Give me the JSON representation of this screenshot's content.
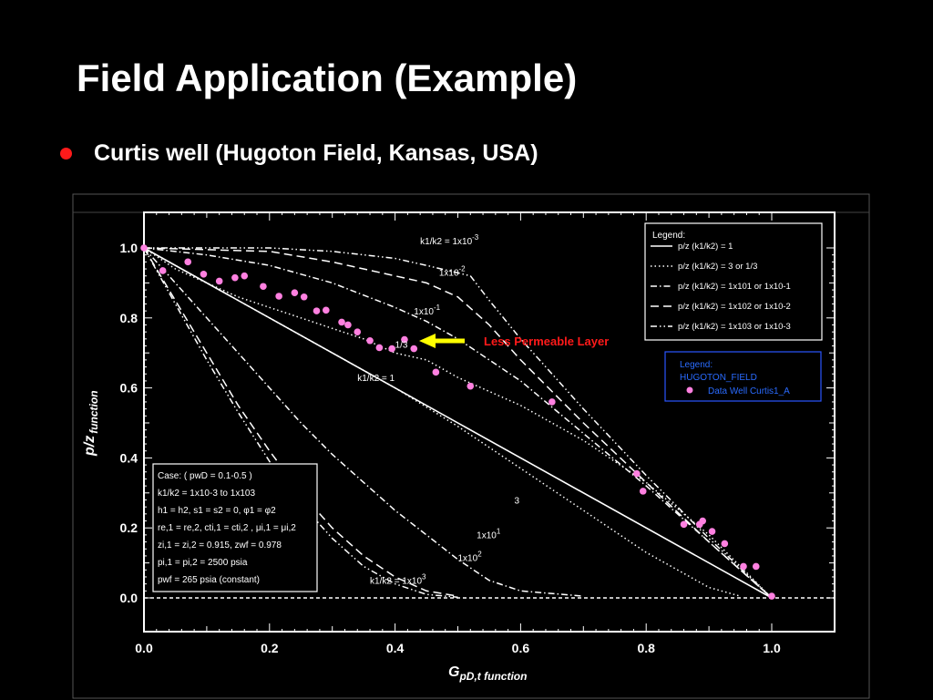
{
  "slide": {
    "title": "Field Application (Example)",
    "bullet": "Curtis well (Hugoton Field, Kansas, USA)",
    "bullet_color": "#ff1a1a"
  },
  "chart_data": {
    "type": "line",
    "xlabel": "G",
    "xlabel_sub": "pD,t function",
    "ylabel": "p/z",
    "ylabel_sub": "function",
    "xlim": [
      0,
      1.0
    ],
    "ylim": [
      0,
      1.0
    ],
    "xticks": [
      "0.0",
      "0.2",
      "0.4",
      "0.6",
      "0.8",
      "1.0"
    ],
    "yticks": [
      "0.0",
      "0.2",
      "0.4",
      "0.6",
      "0.8",
      "1.0"
    ],
    "series": [
      {
        "key": "r1",
        "style": "solid",
        "points": [
          [
            0,
            1
          ],
          [
            1.0,
            0
          ]
        ]
      },
      {
        "key": "r3",
        "style": "dotted",
        "points": [
          [
            0,
            1
          ],
          [
            0.1,
            0.9
          ],
          [
            0.2,
            0.8
          ],
          [
            0.3,
            0.7
          ],
          [
            0.4,
            0.6
          ],
          [
            0.5,
            0.49
          ],
          [
            0.6,
            0.37
          ],
          [
            0.7,
            0.25
          ],
          [
            0.8,
            0.13
          ],
          [
            0.9,
            0.03
          ],
          [
            0.95,
            0.005
          ]
        ]
      },
      {
        "key": "r1_3",
        "style": "dotted",
        "points": [
          [
            0,
            1
          ],
          [
            0.05,
            0.94
          ],
          [
            0.1,
            0.9
          ],
          [
            0.15,
            0.86
          ],
          [
            0.2,
            0.83
          ],
          [
            0.25,
            0.8
          ],
          [
            0.3,
            0.77
          ],
          [
            0.35,
            0.74
          ],
          [
            0.4,
            0.7
          ],
          [
            0.45,
            0.68
          ],
          [
            0.5,
            0.63
          ],
          [
            0.6,
            0.55
          ],
          [
            0.7,
            0.45
          ],
          [
            0.8,
            0.33
          ],
          [
            0.9,
            0.18
          ],
          [
            1.0,
            0
          ]
        ]
      },
      {
        "key": "r10",
        "style": "dashdot",
        "points": [
          [
            0,
            1
          ],
          [
            0.05,
            0.9
          ],
          [
            0.1,
            0.8
          ],
          [
            0.15,
            0.7
          ],
          [
            0.2,
            0.6
          ],
          [
            0.25,
            0.5
          ],
          [
            0.3,
            0.41
          ],
          [
            0.35,
            0.33
          ],
          [
            0.4,
            0.25
          ],
          [
            0.45,
            0.18
          ],
          [
            0.5,
            0.11
          ],
          [
            0.55,
            0.05
          ],
          [
            0.6,
            0.02
          ],
          [
            0.7,
            0.005
          ]
        ]
      },
      {
        "key": "r0_1",
        "style": "dashdot",
        "points": [
          [
            0,
            1
          ],
          [
            0.1,
            0.98
          ],
          [
            0.2,
            0.95
          ],
          [
            0.3,
            0.9
          ],
          [
            0.4,
            0.83
          ],
          [
            0.45,
            0.79
          ],
          [
            0.5,
            0.74
          ],
          [
            0.6,
            0.62
          ],
          [
            0.7,
            0.47
          ],
          [
            0.8,
            0.32
          ],
          [
            0.9,
            0.16
          ],
          [
            1.0,
            0
          ]
        ]
      },
      {
        "key": "r100",
        "style": "dashed",
        "points": [
          [
            0,
            1
          ],
          [
            0.05,
            0.85
          ],
          [
            0.1,
            0.7
          ],
          [
            0.15,
            0.55
          ],
          [
            0.2,
            0.42
          ],
          [
            0.25,
            0.3
          ],
          [
            0.3,
            0.2
          ],
          [
            0.35,
            0.12
          ],
          [
            0.4,
            0.06
          ],
          [
            0.45,
            0.02
          ],
          [
            0.5,
            0.005
          ]
        ]
      },
      {
        "key": "r0_01",
        "style": "dashed",
        "points": [
          [
            0,
            1
          ],
          [
            0.1,
            0.995
          ],
          [
            0.2,
            0.99
          ],
          [
            0.3,
            0.96
          ],
          [
            0.4,
            0.92
          ],
          [
            0.45,
            0.9
          ],
          [
            0.5,
            0.86
          ],
          [
            0.55,
            0.78
          ],
          [
            0.6,
            0.68
          ],
          [
            0.7,
            0.5
          ],
          [
            0.8,
            0.33
          ],
          [
            0.9,
            0.16
          ],
          [
            1.0,
            0
          ]
        ]
      },
      {
        "key": "r1000",
        "style": "dashdotdot",
        "points": [
          [
            0,
            1
          ],
          [
            0.05,
            0.84
          ],
          [
            0.1,
            0.68
          ],
          [
            0.15,
            0.53
          ],
          [
            0.2,
            0.39
          ],
          [
            0.25,
            0.27
          ],
          [
            0.3,
            0.17
          ],
          [
            0.35,
            0.09
          ],
          [
            0.4,
            0.04
          ],
          [
            0.45,
            0.01
          ],
          [
            0.5,
            0.002
          ]
        ]
      },
      {
        "key": "r0_001",
        "style": "dashdotdot",
        "points": [
          [
            0,
            1
          ],
          [
            0.1,
            1.0
          ],
          [
            0.2,
            1.0
          ],
          [
            0.3,
            0.99
          ],
          [
            0.4,
            0.97
          ],
          [
            0.45,
            0.95
          ],
          [
            0.52,
            0.92
          ],
          [
            0.55,
            0.85
          ],
          [
            0.6,
            0.74
          ],
          [
            0.7,
            0.54
          ],
          [
            0.8,
            0.35
          ],
          [
            0.9,
            0.17
          ],
          [
            1.0,
            0
          ]
        ]
      }
    ],
    "data_points": {
      "name": "Data Well Curtis1_A",
      "color": "#ff80e0",
      "points": [
        [
          0.0,
          1.0
        ],
        [
          0.03,
          0.935
        ],
        [
          0.07,
          0.96
        ],
        [
          0.095,
          0.925
        ],
        [
          0.12,
          0.905
        ],
        [
          0.145,
          0.915
        ],
        [
          0.16,
          0.92
        ],
        [
          0.19,
          0.89
        ],
        [
          0.215,
          0.862
        ],
        [
          0.24,
          0.872
        ],
        [
          0.255,
          0.86
        ],
        [
          0.275,
          0.82
        ],
        [
          0.29,
          0.822
        ],
        [
          0.315,
          0.788
        ],
        [
          0.325,
          0.78
        ],
        [
          0.34,
          0.76
        ],
        [
          0.36,
          0.735
        ],
        [
          0.375,
          0.715
        ],
        [
          0.395,
          0.712
        ],
        [
          0.415,
          0.738
        ],
        [
          0.43,
          0.712
        ],
        [
          0.465,
          0.645
        ],
        [
          0.52,
          0.605
        ],
        [
          0.65,
          0.56
        ],
        [
          0.785,
          0.355
        ],
        [
          0.795,
          0.305
        ],
        [
          0.86,
          0.21
        ],
        [
          0.885,
          0.21
        ],
        [
          0.89,
          0.22
        ],
        [
          0.905,
          0.19
        ],
        [
          0.925,
          0.155
        ],
        [
          0.955,
          0.09
        ],
        [
          0.975,
          0.09
        ],
        [
          1.0,
          0.005
        ]
      ]
    },
    "curve_labels": [
      {
        "text": "k1/k2 = 1x10-3",
        "x": 0.44,
        "y": 1.01
      },
      {
        "text": "1x10-2",
        "x": 0.47,
        "y": 0.92
      },
      {
        "text": "1x10-1",
        "x": 0.43,
        "y": 0.81
      },
      {
        "text": "1/3",
        "x": 0.4,
        "y": 0.715
      },
      {
        "text": "k1/k2 = 1",
        "x": 0.34,
        "y": 0.62
      },
      {
        "text": "3",
        "x": 0.59,
        "y": 0.27
      },
      {
        "text": "1x101",
        "x": 0.53,
        "y": 0.17
      },
      {
        "text": "1x102",
        "x": 0.5,
        "y": 0.105
      },
      {
        "text": "k1/k2 = 1x103",
        "x": 0.36,
        "y": 0.04
      }
    ],
    "annotation": {
      "text": "Less Permeable Layer",
      "color": "#ff1a1a",
      "arrow_color": "#ffff00"
    },
    "legend_curves": {
      "title": "Legend:",
      "items": [
        {
          "style": "solid",
          "label": "p/z (k1/k2) = 1"
        },
        {
          "style": "dotted",
          "label": "p/z (k1/k2) = 3 or 1/3"
        },
        {
          "style": "dashdot",
          "label": "p/z (k1/k2) = 1x101 or 1x10-1"
        },
        {
          "style": "dashed",
          "label": "p/z (k1/k2) = 1x102 or 1x10-2"
        },
        {
          "style": "dashdotdot",
          "label": "p/z (k1/k2) = 1x103 or 1x10-3"
        }
      ]
    },
    "legend_data": {
      "title": "Legend:",
      "subtitle": "HUGOTON_FIELD",
      "item": "Data Well Curtis1_A",
      "color": "#2a55ff"
    },
    "case_box": {
      "lines": [
        "Case: ( pwD = 0.1-0.5 )",
        "k1/k2 = 1x10-3 to 1x103",
        "h1 = h2, s1 = s2 = 0, φ1 = φ2",
        "re,1 = re,2, cti,1 = cti,2 , μi,1 = μi,2",
        "zi,1 = zi,2 = 0.915, zwf = 0.978",
        "pi,1 = pi,2 = 2500 psia",
        "pwf = 265 psia (constant)"
      ]
    }
  }
}
